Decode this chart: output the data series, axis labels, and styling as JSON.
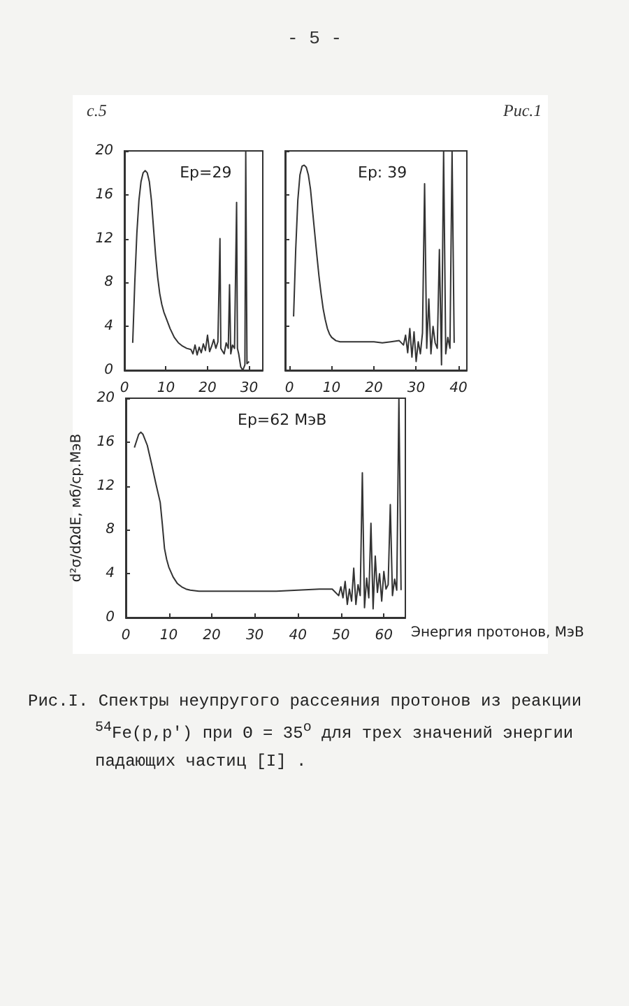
{
  "chart_data": [
    {
      "type": "line",
      "annotations": [
        "Ep=29",
        "- 5 -",
        "с.5"
      ],
      "xlim": [
        0,
        33.3
      ],
      "xticks": [
        0,
        10,
        20,
        30
      ],
      "ylim": [
        0,
        20
      ],
      "yticks": [
        0,
        4,
        8,
        12,
        16,
        20
      ],
      "grid": false,
      "marker": "none",
      "line_style": "solid",
      "series": [
        {
          "color": "#333333",
          "x": [
            2,
            2.5,
            3,
            3.5,
            4,
            4.5,
            5,
            5.5,
            6,
            6.5,
            7,
            7.5,
            8,
            8.5,
            9,
            9.5,
            10,
            11,
            12,
            13,
            14,
            15,
            16,
            16.5,
            17,
            17.5,
            18,
            18.5,
            19,
            19.5,
            20,
            20.5,
            21,
            21.5,
            22,
            22.5,
            23,
            23.2,
            23.5,
            24,
            24.5,
            25,
            25.3,
            25.6,
            26,
            26.5,
            27,
            27.2,
            27.5,
            28,
            28.5,
            29,
            29.2,
            29.5,
            30
          ],
          "values": [
            2.5,
            8,
            12.5,
            15.5,
            17.2,
            18,
            18.2,
            18,
            17.2,
            15.5,
            13,
            10.5,
            8.5,
            7,
            6,
            5.3,
            4.8,
            3.8,
            3,
            2.5,
            2.2,
            2,
            1.9,
            1.5,
            2.3,
            1.4,
            2.1,
            1.6,
            2.4,
            1.8,
            3.2,
            1.7,
            2.2,
            2.8,
            2,
            2.6,
            12,
            2,
            1.8,
            1.5,
            2.5,
            2,
            7.8,
            1.5,
            2.3,
            2,
            15.3,
            2,
            1.5,
            0.3,
            0,
            0.5,
            20,
            0.6,
            0.8
          ]
        }
      ]
    },
    {
      "type": "line",
      "annotations": [
        "Ep: 39",
        "Рис.1"
      ],
      "xlim": [
        -1,
        42
      ],
      "xticks": [
        0,
        10,
        20,
        30,
        40
      ],
      "ylim": [
        0,
        20
      ],
      "yticks": [
        0,
        4,
        8,
        12,
        16,
        20
      ],
      "tick_labels": "x",
      "grid": false,
      "marker": "none",
      "line_style": "solid",
      "series": [
        {
          "color": "#333333",
          "x": [
            1,
            1.5,
            2,
            2.5,
            3,
            3.5,
            4,
            4.5,
            5,
            5.5,
            6,
            6.5,
            7,
            7.5,
            8,
            8.5,
            9,
            9.5,
            10,
            11,
            12,
            14,
            16,
            18,
            20,
            22,
            24,
            26,
            27,
            27.5,
            28,
            28.5,
            29,
            29.5,
            30,
            30.5,
            31,
            31.5,
            32,
            32.5,
            33,
            33.5,
            34,
            34.5,
            35,
            35.5,
            36,
            36.5,
            37,
            37.5,
            38,
            38.5,
            39
          ],
          "values": [
            4.9,
            11,
            15.5,
            17.8,
            18.6,
            18.7,
            18.5,
            17.8,
            16.5,
            14.5,
            12.5,
            10.5,
            8.6,
            7,
            5.6,
            4.6,
            3.8,
            3.3,
            3,
            2.7,
            2.6,
            2.6,
            2.6,
            2.6,
            2.6,
            2.5,
            2.6,
            2.7,
            2.3,
            3.2,
            1.6,
            3.8,
            1.2,
            3.5,
            0.8,
            2.6,
            1.5,
            3.4,
            17,
            2,
            6.5,
            1.5,
            4,
            2.5,
            2,
            11,
            0.5,
            20,
            1.5,
            3,
            2,
            20,
            2.5
          ]
        }
      ]
    },
    {
      "type": "line",
      "annotations": [
        "Ep=62 МэВ",
        "Рис.I. Спектры неупругого рассеяния протонов из реакции $^{54}$Fe(p,p′) при Θ = 35$^{o}$ для трех значений энергии падающих частиц [I] ."
      ],
      "xlabel": "Энергия протонов, МэВ",
      "ylabel": "d²σ/dΩdE, мб/ср.МэВ",
      "xlim": [
        0,
        65
      ],
      "xticks": [
        0,
        10,
        20,
        30,
        40,
        50,
        60
      ],
      "ylim": [
        0,
        20
      ],
      "yticks": [
        0,
        4,
        8,
        12,
        16,
        20
      ],
      "grid": false,
      "marker": "none",
      "line_style": "solid",
      "series": [
        {
          "color": "#333333",
          "x": [
            2,
            3,
            3.5,
            4,
            5,
            6,
            7,
            8,
            8.5,
            9,
            9.5,
            10,
            11,
            12,
            13,
            14,
            15,
            17,
            20,
            25,
            30,
            35,
            40,
            45,
            48,
            49.5,
            50,
            50.5,
            51,
            51.5,
            52,
            52.5,
            53,
            53.5,
            54,
            54.5,
            55,
            55.5,
            56,
            56.5,
            57,
            57.5,
            58,
            58.5,
            59,
            59.5,
            60,
            60.5,
            61,
            61.5,
            62,
            62.5,
            63,
            63.5,
            64
          ],
          "values": [
            15.5,
            16.7,
            16.9,
            16.7,
            15.7,
            14,
            12.2,
            10.5,
            8.5,
            6.3,
            5.3,
            4.6,
            3.7,
            3.1,
            2.8,
            2.6,
            2.5,
            2.4,
            2.4,
            2.4,
            2.4,
            2.4,
            2.5,
            2.6,
            2.6,
            2.0,
            2.8,
            1.8,
            3.3,
            1.2,
            2.6,
            1.5,
            4.5,
            1.2,
            3,
            2,
            13.2,
            0.9,
            3.6,
            1.8,
            8.6,
            0.8,
            5.6,
            2.3,
            4,
            1.5,
            4.2,
            2.6,
            3,
            10.3,
            2,
            3.5,
            2.5,
            20,
            2.5
          ]
        }
      ]
    }
  ]
}
